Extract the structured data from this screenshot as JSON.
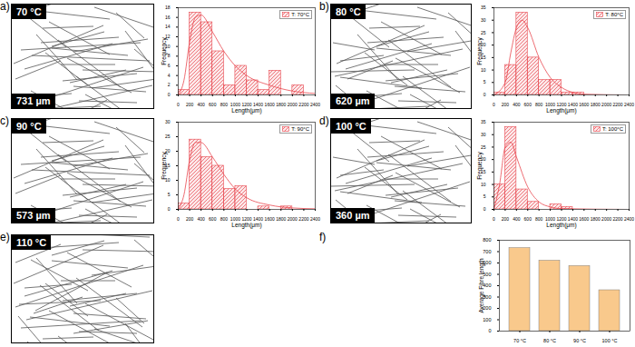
{
  "chart_data": [
    {
      "type": "histogram",
      "panel": "a)",
      "image_labels": [
        "70 °C",
        "731 µm"
      ],
      "name": "T: 70°C",
      "color": "#e8464e",
      "legend": "upper right",
      "bins": [
        0,
        200,
        400,
        600,
        800,
        1000,
        1200,
        1400,
        1600,
        1800,
        2000,
        2200,
        2400
      ],
      "values": [
        1,
        17,
        15,
        9,
        2,
        6,
        3,
        1,
        5,
        0,
        2,
        0
      ],
      "curve": {
        "x": [
          0,
          100,
          200,
          300,
          400,
          600,
          800,
          1000,
          1200,
          1600,
          2000,
          2400
        ],
        "values": [
          0,
          3,
          11,
          16,
          16.5,
          13,
          9,
          6,
          4,
          2,
          0.8,
          0.3
        ]
      },
      "xlabel": "Length(μm)",
      "ylabel": "Frequency",
      "xlim": [
        0,
        2400
      ],
      "xticks": [
        0,
        200,
        400,
        600,
        800,
        1000,
        1200,
        1400,
        1600,
        1800,
        2000,
        2200,
        2400
      ],
      "ylim": [
        0,
        18
      ],
      "yticks": [
        0,
        2,
        4,
        6,
        8,
        10,
        12,
        14,
        16,
        18
      ]
    },
    {
      "type": "histogram",
      "panel": "b)",
      "image_labels": [
        "80 °C",
        "620 µm"
      ],
      "name": "T: 80°C",
      "color": "#e8464e",
      "legend": "upper right",
      "bins": [
        0,
        200,
        400,
        600,
        800,
        1000,
        1200,
        1400,
        1600,
        1800,
        2000,
        2200,
        2400
      ],
      "values": [
        1,
        12,
        33,
        15,
        6,
        6,
        1,
        1,
        0,
        0,
        0,
        0
      ],
      "curve": {
        "x": [
          0,
          200,
          300,
          400,
          500,
          600,
          800,
          1000,
          1200,
          1400,
          1600,
          2400
        ],
        "values": [
          0,
          5,
          17,
          27,
          30,
          27,
          15,
          7,
          3,
          1,
          0.3,
          0
        ]
      },
      "xlabel": "Length(μm)",
      "ylabel": "Frequency",
      "xlim": [
        0,
        2400
      ],
      "xticks": [
        0,
        200,
        400,
        600,
        800,
        1000,
        1200,
        1400,
        1600,
        1800,
        2000,
        2200,
        2400
      ],
      "ylim": [
        0,
        35
      ],
      "yticks": [
        0,
        5,
        10,
        15,
        20,
        25,
        30,
        35
      ]
    },
    {
      "type": "histogram",
      "panel": "c)",
      "image_labels": [
        "90 °C",
        "573 µm"
      ],
      "name": "T: 90°C",
      "color": "#e8464e",
      "legend": "upper right",
      "bins": [
        0,
        200,
        400,
        600,
        800,
        1000,
        1200,
        1400,
        1600,
        1800,
        2000,
        2200,
        2400
      ],
      "values": [
        2,
        24,
        18,
        15,
        7,
        8,
        0,
        1,
        0,
        1,
        0,
        0
      ],
      "curve": {
        "x": [
          0,
          100,
          200,
          300,
          400,
          600,
          800,
          1000,
          1200,
          1600,
          2000,
          2400
        ],
        "values": [
          0,
          5,
          17,
          23,
          23,
          18,
          12,
          7,
          4,
          1.5,
          0.5,
          0.2
        ]
      },
      "xlabel": "Length(μm)",
      "ylabel": "Frequency",
      "xlim": [
        0,
        2400
      ],
      "xticks": [
        0,
        200,
        400,
        600,
        800,
        1000,
        1200,
        1400,
        1600,
        1800,
        2000,
        2200,
        2400
      ],
      "ylim": [
        0,
        30
      ],
      "yticks": [
        0,
        5,
        10,
        15,
        20,
        25,
        30
      ]
    },
    {
      "type": "histogram",
      "panel": "d)",
      "image_labels": [
        "100 °C",
        "360 µm"
      ],
      "name": "T: 100°C",
      "color": "#e8464e",
      "legend": "upper right",
      "bins": [
        0,
        200,
        400,
        600,
        800,
        1000,
        1200,
        1400,
        1600,
        1800,
        2000,
        2200,
        2400
      ],
      "values": [
        10,
        33,
        8,
        3,
        0,
        2,
        1,
        0,
        0,
        0,
        0,
        0
      ],
      "curve": {
        "x": [
          0,
          100,
          200,
          300,
          400,
          600,
          800,
          1000,
          1200,
          2400
        ],
        "values": [
          0,
          10,
          25,
          27,
          21,
          9,
          3,
          1,
          0.3,
          0
        ]
      },
      "xlabel": "Length(μm)",
      "ylabel": "Frequency",
      "xlim": [
        0,
        2400
      ],
      "xticks": [
        0,
        200,
        400,
        600,
        800,
        1000,
        1200,
        1400,
        1600,
        1800,
        2000,
        2200,
        2400
      ],
      "ylim": [
        0,
        35
      ],
      "yticks": [
        0,
        5,
        10,
        15,
        20,
        25,
        30,
        35
      ]
    },
    {
      "type": "image",
      "panel": "e)",
      "image_labels": [
        "110 °C"
      ]
    },
    {
      "type": "bar",
      "panel": "f)",
      "categories": [
        "70 °C",
        "80 °C",
        "90 °C",
        "100 °C"
      ],
      "values": [
        731,
        620,
        573,
        360
      ],
      "color": "#f9c98c",
      "ylabel": "Average Fibre length",
      "ylim": [
        0,
        800
      ],
      "yticks": [
        0,
        100,
        200,
        300,
        400,
        500,
        600,
        700,
        800
      ]
    }
  ]
}
